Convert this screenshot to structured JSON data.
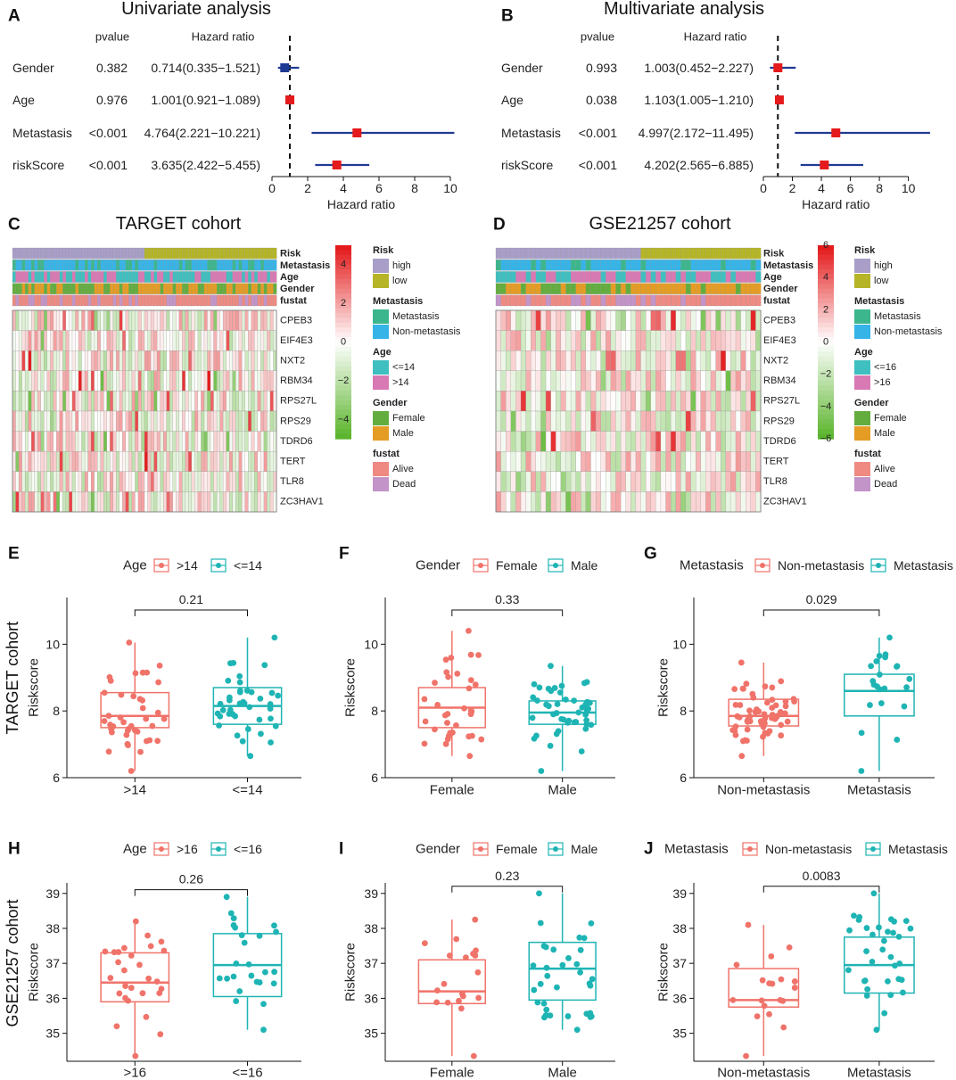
{
  "chart_data": {
    "type": "multi-panel",
    "forest_plots": [
      {
        "letter": "A",
        "type": "forest",
        "title": "Univariate analysis",
        "col_pvalue": "pvalue",
        "col_hr": "Hazard ratio",
        "xlabel": "Hazard ratio",
        "xlim": [
          0,
          10
        ],
        "xticks": [
          0,
          2,
          4,
          6,
          8,
          10
        ],
        "reference_line": 1,
        "rows": [
          {
            "label": "Gender",
            "pvalue": "0.382",
            "hr_text": "0.714(0.335−1.521)",
            "hr": 0.714,
            "lo": 0.335,
            "hi": 1.521,
            "color": "#1f3a93"
          },
          {
            "label": "Age",
            "pvalue": "0.976",
            "hr_text": "1.001(0.921−1.089)",
            "hr": 1.001,
            "lo": 0.921,
            "hi": 1.089,
            "color": "#e41a1c"
          },
          {
            "label": "Metastasis",
            "pvalue": "<0.001",
            "hr_text": "4.764(2.221−10.221)",
            "hr": 4.764,
            "lo": 2.221,
            "hi": 10.221,
            "color": "#e41a1c"
          },
          {
            "label": "riskScore",
            "pvalue": "<0.001",
            "hr_text": "3.635(2.422−5.455)",
            "hr": 3.635,
            "lo": 2.422,
            "hi": 5.455,
            "color": "#e41a1c"
          }
        ]
      },
      {
        "letter": "B",
        "type": "forest",
        "title": "Multivariate analysis",
        "col_pvalue": "pvalue",
        "col_hr": "Hazard ratio",
        "xlabel": "Hazard ratio",
        "xlim": [
          0,
          11.5
        ],
        "xticks": [
          0,
          2,
          4,
          6,
          8,
          10
        ],
        "reference_line": 1,
        "rows": [
          {
            "label": "Gender",
            "pvalue": "0.993",
            "hr_text": "1.003(0.452−2.227)",
            "hr": 1.003,
            "lo": 0.452,
            "hi": 2.227,
            "color": "#e41a1c"
          },
          {
            "label": "Age",
            "pvalue": "0.038",
            "hr_text": "1.103(1.005−1.210)",
            "hr": 1.103,
            "lo": 1.005,
            "hi": 1.21,
            "color": "#e41a1c"
          },
          {
            "label": "Metastasis",
            "pvalue": "<0.001",
            "hr_text": "4.997(2.172−11.495)",
            "hr": 4.997,
            "lo": 2.172,
            "hi": 11.495,
            "color": "#e41a1c"
          },
          {
            "label": "riskScore",
            "pvalue": "<0.001",
            "hr_text": "4.202(2.565−6.885)",
            "hr": 4.202,
            "lo": 2.565,
            "hi": 6.885,
            "color": "#e41a1c"
          }
        ]
      }
    ],
    "heatmaps": [
      {
        "letter": "C",
        "type": "heatmap",
        "title": "TARGET cohort",
        "n_samples": 84,
        "annotation_labels": [
          "Risk",
          "Metastasis",
          "Age",
          "Gender",
          "fustat"
        ],
        "genes": [
          "CPEB3",
          "EIF4E3",
          "NXT2",
          "RBM34",
          "RPS27L",
          "RPS29",
          "TDRD6",
          "TERT",
          "TLR8",
          "ZC3HAV1"
        ],
        "colorbar_ticks": [
          "4",
          "2",
          "0",
          "−2",
          "−4"
        ],
        "colorbar_range": [
          -5,
          5
        ],
        "legends": [
          {
            "title": "Risk",
            "items": [
              {
                "label": "high",
                "color": "#a89ec8"
              },
              {
                "label": "low",
                "color": "#b5b527"
              }
            ]
          },
          {
            "title": "Metastasis",
            "items": [
              {
                "label": "Metastasis",
                "color": "#3cb68c"
              },
              {
                "label": "Non-metastasis",
                "color": "#36b4e8"
              }
            ]
          },
          {
            "title": "Age",
            "items": [
              {
                "label": "<=14",
                "color": "#40bfc0"
              },
              {
                "label": ">14",
                "color": "#d979b4"
              }
            ]
          },
          {
            "title": "Gender",
            "items": [
              {
                "label": "Female",
                "color": "#63ad3f"
              },
              {
                "label": "Male",
                "color": "#e49c24"
              }
            ]
          },
          {
            "title": "fustat",
            "items": [
              {
                "label": "Alive",
                "color": "#ee8a82"
              },
              {
                "label": "Dead",
                "color": "#c294c8"
              }
            ]
          }
        ]
      },
      {
        "letter": "D",
        "type": "heatmap",
        "title": "GSE21257 cohort",
        "n_samples": 53,
        "annotation_labels": [
          "Risk",
          "Metastasis",
          "Age",
          "Gender",
          "fustat"
        ],
        "genes": [
          "CPEB3",
          "EIF4E3",
          "NXT2",
          "RBM34",
          "RPS27L",
          "RPS29",
          "TDRD6",
          "TERT",
          "TLR8",
          "ZC3HAV1"
        ],
        "colorbar_ticks": [
          "6",
          "4",
          "2",
          "0",
          "−2",
          "−4",
          "−6"
        ],
        "colorbar_range": [
          -6,
          6
        ],
        "legends": [
          {
            "title": "Risk",
            "items": [
              {
                "label": "high",
                "color": "#a89ec8"
              },
              {
                "label": "low",
                "color": "#b5b527"
              }
            ]
          },
          {
            "title": "Metastasis",
            "items": [
              {
                "label": "Metastasis",
                "color": "#3cb68c"
              },
              {
                "label": "Non-metastasis",
                "color": "#36b4e8"
              }
            ]
          },
          {
            "title": "Age",
            "items": [
              {
                "label": "<=16",
                "color": "#40bfc0"
              },
              {
                "label": ">16",
                "color": "#d979b4"
              }
            ]
          },
          {
            "title": "Gender",
            "items": [
              {
                "label": "Female",
                "color": "#63ad3f"
              },
              {
                "label": "Male",
                "color": "#e49c24"
              }
            ]
          },
          {
            "title": "fustat",
            "items": [
              {
                "label": "Alive",
                "color": "#ee8a82"
              },
              {
                "label": "Dead",
                "color": "#c294c8"
              }
            ]
          }
        ]
      }
    ],
    "row_labels": [
      "TARGET cohort",
      "GSE21257 cohort"
    ],
    "boxplots": [
      {
        "letter": "E",
        "type": "box",
        "legend_title": "Age",
        "groups": [
          ">14",
          "<=14"
        ],
        "colors": [
          "#f0736a",
          "#1fb4b4"
        ],
        "pvalue": "0.21",
        "ylabel": "Riskscore",
        "ylim": [
          6,
          11.4
        ],
        "yticks": [
          6,
          8,
          10
        ],
        "stats": [
          {
            "min": 6.2,
            "q1": 7.5,
            "median": 7.85,
            "q3": 8.55,
            "max": 10.05,
            "n": 40
          },
          {
            "min": 6.65,
            "q1": 7.6,
            "median": 8.15,
            "q3": 8.7,
            "max": 10.2,
            "n": 40
          }
        ]
      },
      {
        "letter": "F",
        "type": "box",
        "legend_title": "Gender",
        "groups": [
          "Female",
          "Male"
        ],
        "colors": [
          "#f0736a",
          "#1fb4b4"
        ],
        "pvalue": "0.33",
        "ylabel": "Riskscore",
        "ylim": [
          6,
          11.4
        ],
        "yticks": [
          6,
          8,
          10
        ],
        "stats": [
          {
            "min": 6.65,
            "q1": 7.5,
            "median": 8.1,
            "q3": 8.7,
            "max": 10.4,
            "n": 34
          },
          {
            "min": 6.2,
            "q1": 7.6,
            "median": 7.95,
            "q3": 8.3,
            "max": 9.35,
            "n": 46
          }
        ]
      },
      {
        "letter": "G",
        "type": "box",
        "legend_title": "Metastasis",
        "groups": [
          "Non-metastasis",
          "Metastasis"
        ],
        "colors": [
          "#f0736a",
          "#1fb4b4"
        ],
        "pvalue": "0.029",
        "ylabel": "Riskscore",
        "ylim": [
          6,
          11.4
        ],
        "yticks": [
          6,
          8,
          10
        ],
        "stats": [
          {
            "min": 6.65,
            "q1": 7.55,
            "median": 7.85,
            "q3": 8.35,
            "max": 9.45,
            "n": 62
          },
          {
            "min": 6.2,
            "q1": 7.85,
            "median": 8.6,
            "q3": 9.1,
            "max": 10.2,
            "n": 22
          }
        ]
      },
      {
        "letter": "H",
        "type": "box",
        "legend_title": "Age",
        "groups": [
          ">16",
          "<=16"
        ],
        "colors": [
          "#f0736a",
          "#1fb4b4"
        ],
        "pvalue": "0.26",
        "ylabel": "Riskscore",
        "ylim": [
          34.2,
          39.3
        ],
        "yticks": [
          35,
          36,
          37,
          38,
          39
        ],
        "stats": [
          {
            "min": 34.35,
            "q1": 35.9,
            "median": 36.45,
            "q3": 37.3,
            "max": 38.2,
            "n": 28
          },
          {
            "min": 35.1,
            "q1": 36.05,
            "median": 36.95,
            "q3": 37.85,
            "max": 38.9,
            "n": 25
          }
        ]
      },
      {
        "letter": "I",
        "type": "box",
        "legend_title": "Gender",
        "groups": [
          "Female",
          "Male"
        ],
        "colors": [
          "#f0736a",
          "#1fb4b4"
        ],
        "pvalue": "0.23",
        "ylabel": "Riskscore",
        "ylim": [
          34.2,
          39.3
        ],
        "yticks": [
          35,
          36,
          37,
          38,
          39
        ],
        "stats": [
          {
            "min": 34.35,
            "q1": 35.85,
            "median": 36.2,
            "q3": 37.1,
            "max": 38.25,
            "n": 19
          },
          {
            "min": 35.1,
            "q1": 35.95,
            "median": 36.85,
            "q3": 37.6,
            "max": 39.0,
            "n": 34
          }
        ]
      },
      {
        "letter": "J",
        "type": "box",
        "legend_title": "Metastasis",
        "groups": [
          "Non-metastasis",
          "Metastasis"
        ],
        "colors": [
          "#f0736a",
          "#1fb4b4"
        ],
        "pvalue": "0.0083",
        "ylabel": "Riskscore",
        "ylim": [
          34.2,
          39.3
        ],
        "yticks": [
          35,
          36,
          37,
          38,
          39
        ],
        "stats": [
          {
            "min": 34.35,
            "q1": 35.75,
            "median": 35.95,
            "q3": 36.85,
            "max": 38.1,
            "n": 19
          },
          {
            "min": 35.1,
            "q1": 36.15,
            "median": 36.95,
            "q3": 37.75,
            "max": 39.0,
            "n": 34
          }
        ]
      }
    ]
  }
}
